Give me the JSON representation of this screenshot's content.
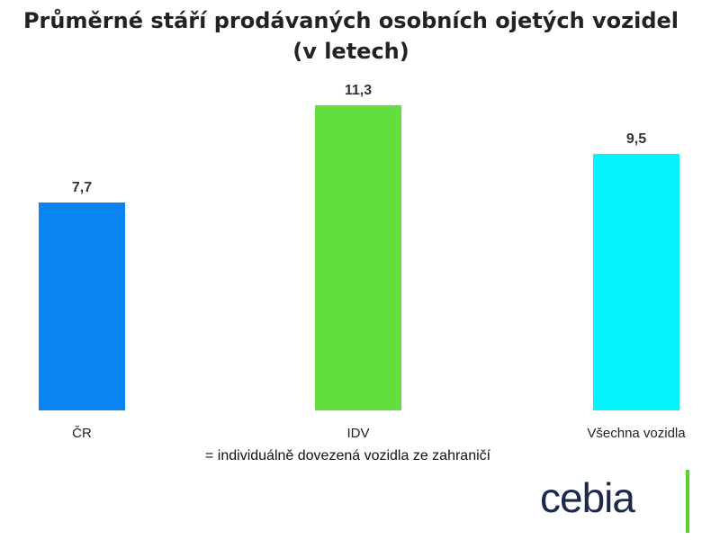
{
  "title_line1": "Průměrné stáří prodávaných osobních ojetých vozidel",
  "title_line2": "(v letech)",
  "footnote": "= individuálně dovezená vozidla ze zahraničí",
  "logo_text": "cebia",
  "colors": {
    "bar_cr": "#0a84f0",
    "bar_idv": "#62de3e",
    "bar_all": "#05f1fb",
    "logo_text": "#1b2a4a",
    "logo_bar": "#5ad12b"
  },
  "chart_data": {
    "type": "bar",
    "categories": [
      "ČR",
      "IDV",
      "Všechna vozidla"
    ],
    "values": [
      7.7,
      11.3,
      9.5
    ],
    "value_labels": [
      "7,7",
      "11,3",
      "9,5"
    ],
    "bar_colors": [
      "#0a84f0",
      "#62de3e",
      "#05f1fb"
    ],
    "title": "Průměrné stáří prodávaných osobních ojetých vozidel (v letech)",
    "xlabel": "",
    "ylabel": "",
    "grid": false,
    "legend": "none"
  }
}
